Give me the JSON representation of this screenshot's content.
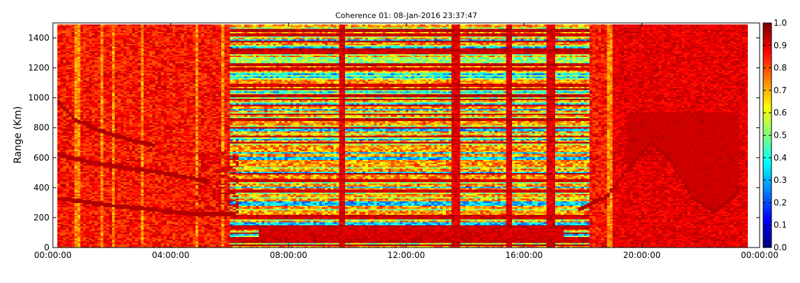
{
  "chart_data": {
    "type": "heatmap",
    "title": "Coherence 01: 08-Jan-2016 23:37:47",
    "xlabel": "",
    "ylabel": "Range (Km)",
    "x_tick_labels": [
      "00:00:00",
      "04:00:00",
      "08:00:00",
      "12:00:00",
      "16:00:00",
      "20:00:00",
      "00:00:00"
    ],
    "x_tick_hours": [
      0,
      4,
      8,
      12,
      16,
      20,
      24
    ],
    "xlim_hours": [
      0,
      24
    ],
    "y_ticks": [
      0,
      200,
      400,
      600,
      800,
      1000,
      1200,
      1400
    ],
    "ylim": [
      0,
      1500
    ],
    "data_extent_hours": [
      0.15,
      23.6
    ],
    "data_extent_range_km": [
      0,
      1490
    ],
    "colorbar": {
      "colormap": "jet",
      "range": [
        0.0,
        1.0
      ],
      "tick_labels": [
        "0.0",
        "0.1",
        "0.2",
        "0.3",
        "0.4",
        "0.5",
        "0.6",
        "0.7",
        "0.8",
        "0.9",
        "1.0"
      ]
    },
    "features": {
      "low_coherence_block_hours": [
        6.0,
        18.2
      ],
      "high_coherence_vertical_bands_hours": [
        9.8,
        13.7,
        15.5,
        16.9
      ],
      "strong_horizontal_bands_range_km": [
        50,
        130,
        200,
        380,
        450,
        700,
        800,
        950,
        1080,
        1190,
        1300,
        1420
      ],
      "echo_traces_morning": [
        {
          "hours": [
            0.15,
            2.0,
            3.5,
            5.0,
            6.2
          ],
          "range_km": [
            330,
            280,
            250,
            220,
            220
          ]
        },
        {
          "hours": [
            0.15,
            1.5,
            3.0,
            4.5,
            5.3
          ],
          "range_km": [
            620,
            560,
            520,
            470,
            440
          ]
        },
        {
          "hours": [
            0.15,
            0.8,
            1.6,
            2.6,
            3.5
          ],
          "range_km": [
            980,
            850,
            780,
            720,
            680
          ]
        }
      ],
      "echo_trace_evening": {
        "hours": [
          17.8,
          18.8,
          19.5,
          20.3,
          21.0,
          21.7,
          22.5,
          23.3
        ],
        "range_km": [
          250,
          340,
          520,
          700,
          580,
          330,
          240,
          380
        ]
      }
    }
  }
}
